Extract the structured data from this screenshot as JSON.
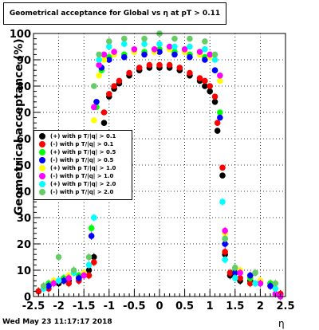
{
  "chart_data": {
    "type": "scatter",
    "title": "Geometrical acceptance for Global vs  η at pT > 0.11",
    "xlabel": "η",
    "ylabel": "Geometrical acceptance (%)",
    "xlim": [
      -2.5,
      2.5
    ],
    "ylim": [
      0,
      100
    ],
    "x_ticks": [
      "-2.5",
      "-2",
      "-1.5",
      "-1",
      "-0.5",
      "0",
      "0.5",
      "1",
      "1.5",
      "2",
      "2.5"
    ],
    "y_ticks": [
      "0",
      "10",
      "20",
      "30",
      "40",
      "50",
      "60",
      "70",
      "80",
      "90",
      "100"
    ],
    "grid": true,
    "legend_position": "left-middle",
    "series": [
      {
        "name": "(+) with p T/|q| > 0.1",
        "color": "#000000",
        "x": [
          -2.4,
          -2.2,
          -2.0,
          -1.8,
          -1.6,
          -1.4,
          -1.3,
          -1.2,
          -1.1,
          -1.0,
          -0.9,
          -0.8,
          -0.6,
          -0.4,
          -0.2,
          0.0,
          0.2,
          0.4,
          0.6,
          0.8,
          0.9,
          1.0,
          1.1,
          1.15,
          1.25,
          1.3,
          1.4,
          1.6,
          1.8,
          2.0,
          2.2,
          2.4
        ],
        "y": [
          2,
          4,
          5,
          6,
          7,
          10,
          15,
          44,
          66,
          76,
          79,
          81,
          84,
          86,
          87,
          87,
          87,
          86,
          84,
          82,
          80,
          78,
          74,
          63,
          46,
          16,
          8,
          6,
          6,
          5,
          5,
          1
        ]
      },
      {
        "name": "(-) with p T/|q| > 0.1",
        "color": "#ff0000",
        "x": [
          -2.4,
          -2.2,
          -2.0,
          -1.8,
          -1.6,
          -1.4,
          -1.3,
          -1.2,
          -1.1,
          -1.0,
          -0.9,
          -0.8,
          -0.6,
          -0.4,
          -0.2,
          0.0,
          0.2,
          0.4,
          0.6,
          0.8,
          0.9,
          1.0,
          1.1,
          1.15,
          1.25,
          1.3,
          1.4,
          1.6,
          1.8,
          2.0,
          2.2,
          2.4
        ],
        "y": [
          2,
          3,
          6,
          5,
          6,
          8,
          13,
          42,
          70,
          77,
          80,
          82,
          85,
          87,
          88,
          88,
          88,
          87,
          85,
          83,
          82,
          80,
          76,
          66,
          49,
          17,
          9,
          7,
          5,
          6,
          4,
          1
        ]
      },
      {
        "name": "(+) with p T/|q| > 0.5",
        "color": "#00ff00",
        "x": [
          -2.2,
          -1.9,
          -1.6,
          -1.35,
          -1.25,
          -1.15,
          -1.0,
          -0.7,
          -0.3,
          0.0,
          0.3,
          0.6,
          0.9,
          1.1,
          1.2,
          1.3,
          1.5,
          1.8,
          2.2
        ],
        "y": [
          5,
          7,
          8,
          26,
          72,
          86,
          91,
          92,
          93,
          94,
          93,
          92,
          91,
          86,
          70,
          22,
          10,
          7,
          5
        ]
      },
      {
        "name": "(-) with p T/|q| > 0.5",
        "color": "#0000ff",
        "x": [
          -2.2,
          -1.9,
          -1.6,
          -1.35,
          -1.25,
          -1.15,
          -1.0,
          -0.7,
          -0.3,
          0.0,
          0.3,
          0.6,
          0.9,
          1.1,
          1.2,
          1.3,
          1.5,
          1.8,
          2.2
        ],
        "y": [
          4,
          6,
          7,
          23,
          74,
          87,
          90,
          91,
          92,
          93,
          92,
          91,
          90,
          86,
          68,
          20,
          9,
          8,
          4
        ]
      },
      {
        "name": "(+) with p T/|q| > 1.0",
        "color": "#ffff00",
        "x": [
          -2.1,
          -1.8,
          -1.5,
          -1.3,
          -1.2,
          -1.1,
          -0.9,
          -0.5,
          -0.1,
          0.2,
          0.5,
          0.8,
          1.0,
          1.2,
          1.3,
          1.6,
          2.0
        ],
        "y": [
          6,
          8,
          9,
          67,
          84,
          90,
          92,
          93,
          93,
          94,
          93,
          92,
          91,
          82,
          24,
          10,
          6
        ]
      },
      {
        "name": "(-) with p T/|q| > 1.0",
        "color": "#ff00ff",
        "x": [
          -2.1,
          -1.8,
          -1.5,
          -1.3,
          -1.2,
          -1.1,
          -0.9,
          -0.5,
          -0.1,
          0.2,
          0.5,
          0.8,
          1.0,
          1.2,
          1.3,
          1.6,
          2.0,
          2.3,
          2.4
        ],
        "y": [
          5,
          7,
          8,
          72,
          88,
          92,
          93,
          94,
          94,
          95,
          94,
          93,
          92,
          84,
          25,
          9,
          5,
          1,
          0
        ]
      },
      {
        "name": "(+) with p T/|q| > 2.0",
        "color": "#00ffff",
        "x": [
          -2.3,
          -2.0,
          -1.7,
          -1.4,
          -1.3,
          -1.2,
          -1.0,
          -0.7,
          -0.3,
          0.0,
          0.3,
          0.6,
          0.9,
          1.1,
          1.25,
          1.3,
          1.5,
          1.9,
          2.3
        ],
        "y": [
          3,
          6,
          9,
          12,
          30,
          90,
          95,
          96,
          96,
          96,
          95,
          95,
          94,
          90,
          36,
          14,
          7,
          5,
          3
        ]
      },
      {
        "name": "(-) with p T/|q| > 2.0",
        "color": "#66cc66",
        "x": [
          -2.3,
          -2.0,
          -1.7,
          -1.4,
          -1.3,
          -1.2,
          -1.0,
          -0.7,
          -0.3,
          0.0,
          0.3,
          0.6,
          0.9,
          1.1,
          1.3,
          1.5,
          1.9,
          2.3
        ],
        "y": [
          4,
          15,
          10,
          15,
          80,
          92,
          97,
          98,
          98,
          100,
          98,
          98,
          97,
          92,
          22,
          11,
          9,
          5
        ]
      }
    ]
  },
  "stamp": "Wed May 23 11:17:17 2018"
}
